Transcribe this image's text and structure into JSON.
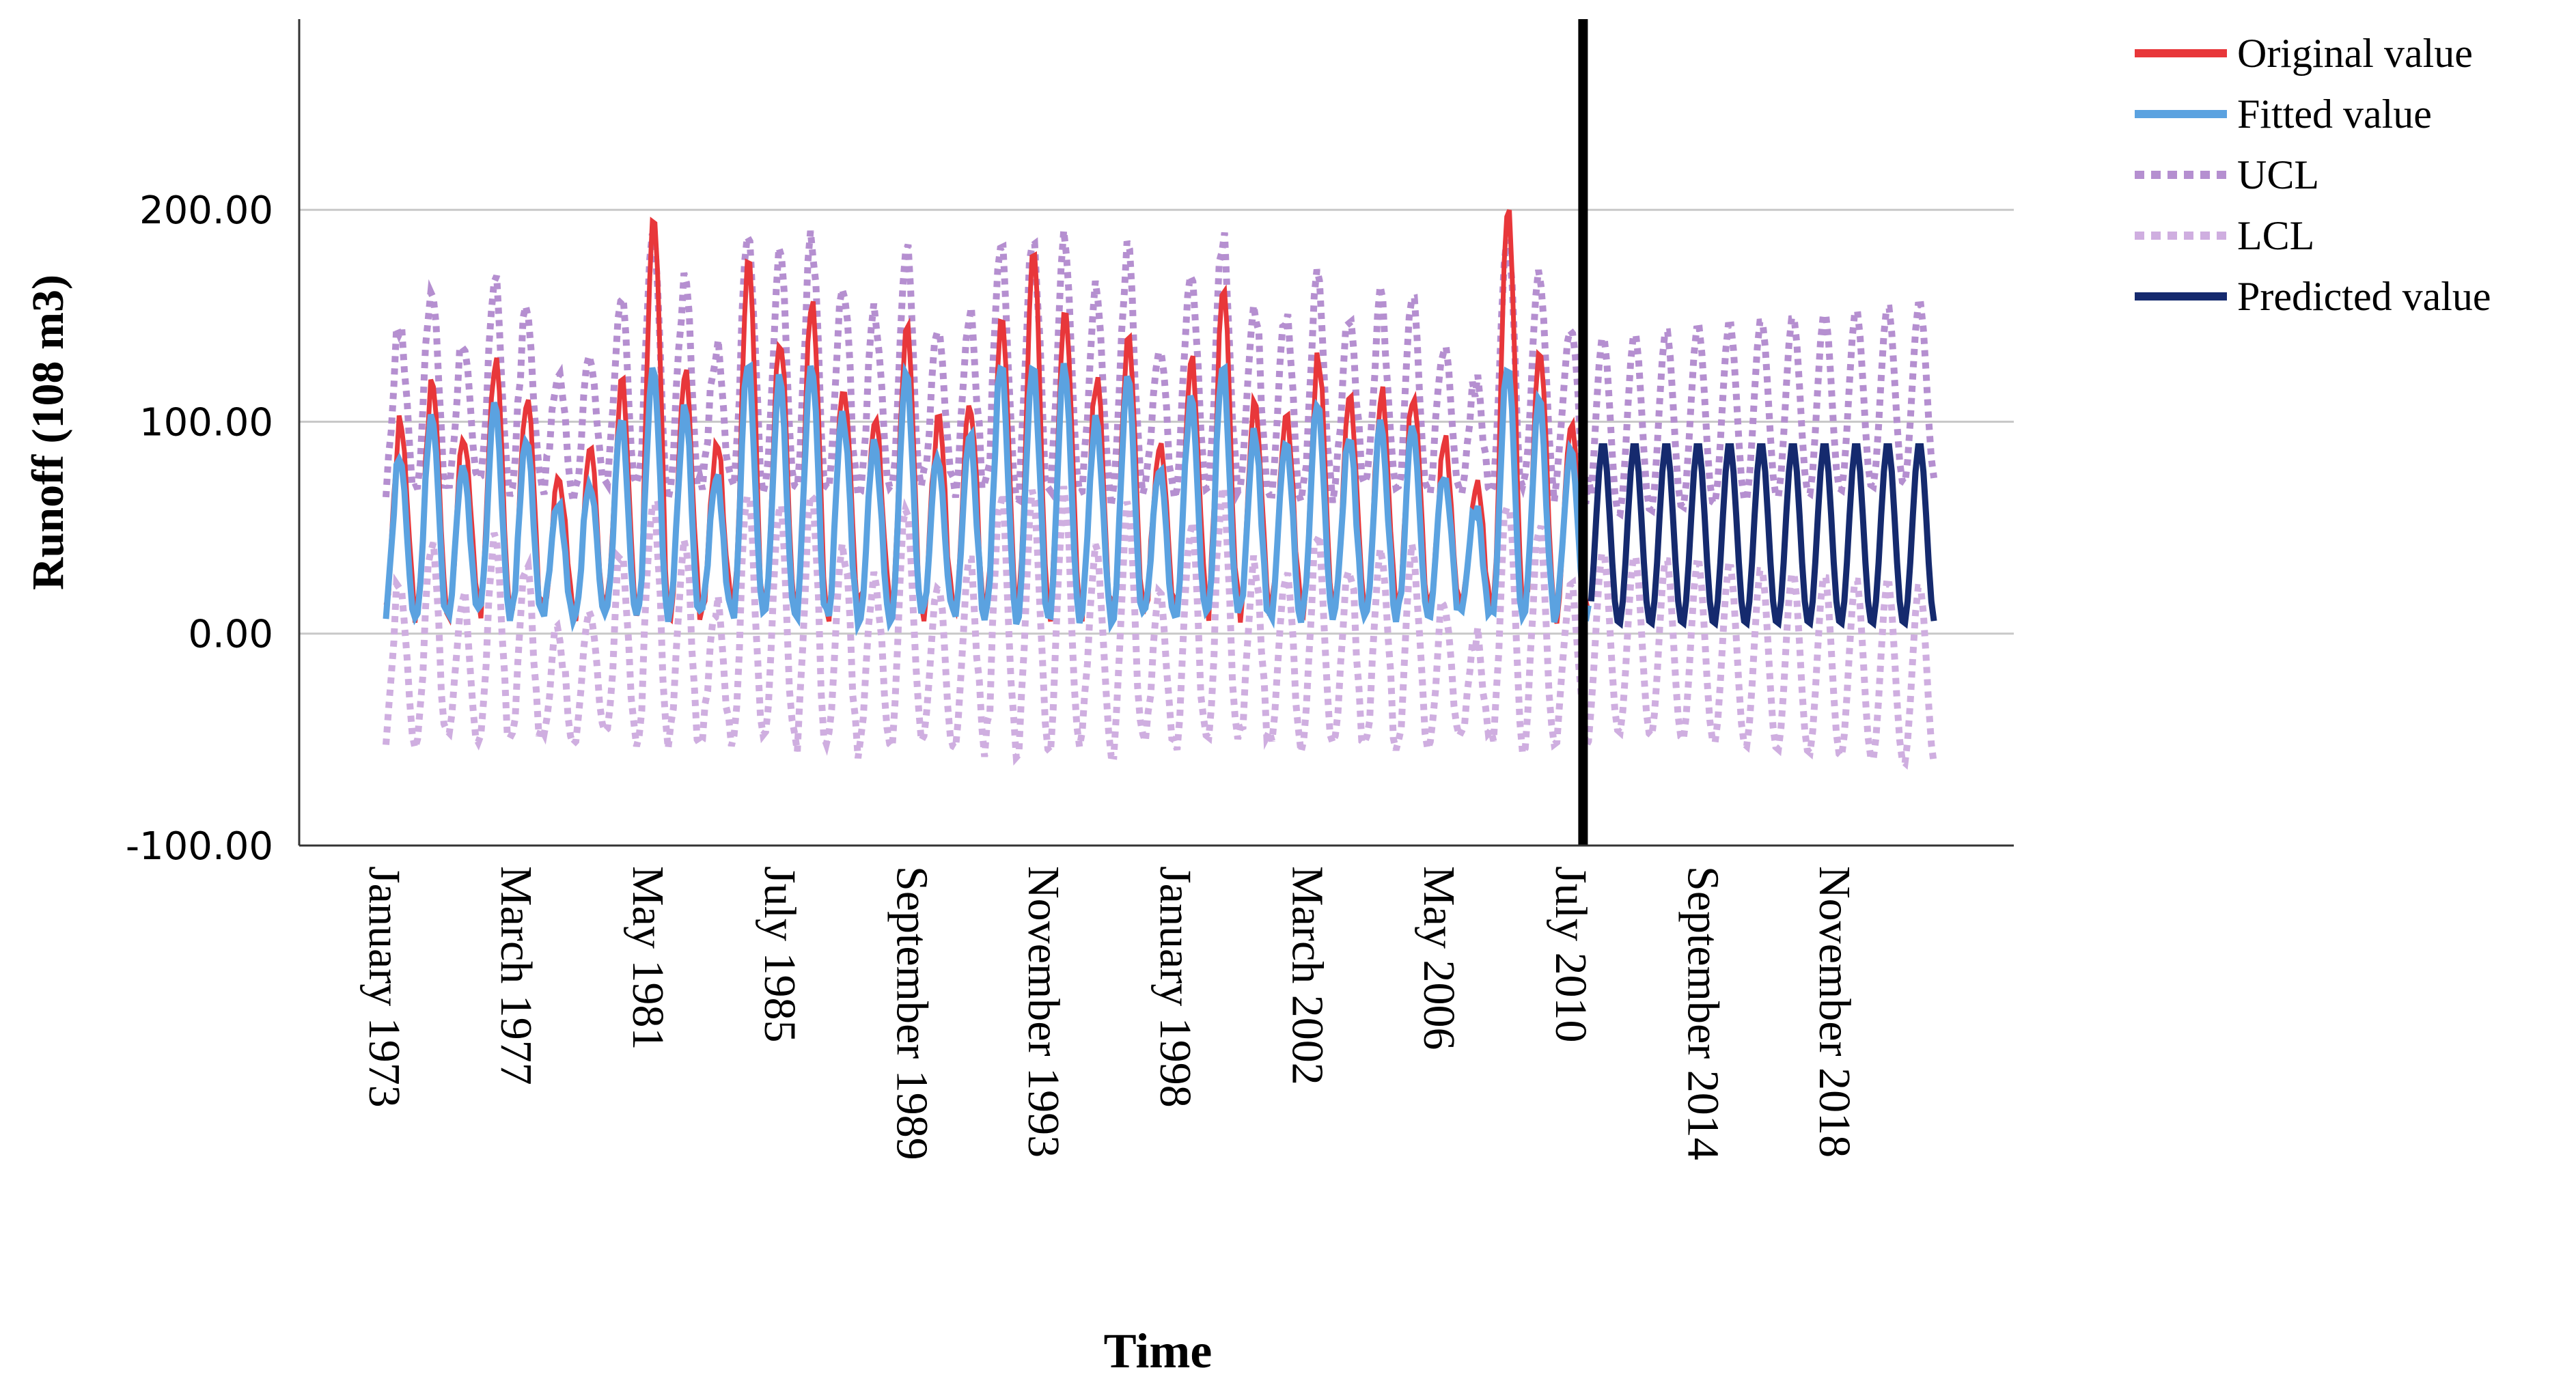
{
  "chart_data": {
    "type": "line",
    "title": "",
    "xlabel": "Time",
    "ylabel": "Runoff (108 m3)",
    "ylim": [
      -100,
      290
    ],
    "yticks": [
      -100,
      0,
      100,
      200
    ],
    "ytick_labels": [
      "-100.00",
      "0.00",
      "100.00",
      "200.00"
    ],
    "gridlines_y": [
      0,
      100,
      200
    ],
    "x_start": "January 1973",
    "x_end": "December 2021",
    "xticks": [
      {
        "label": "January 1973",
        "year": 1973.0
      },
      {
        "label": "March 1977",
        "year": 1977.17
      },
      {
        "label": "May 1981",
        "year": 1981.33
      },
      {
        "label": "July 1985",
        "year": 1985.5
      },
      {
        "label": "September 1989",
        "year": 1989.67
      },
      {
        "label": "November 1993",
        "year": 1993.83
      },
      {
        "label": "January 1998",
        "year": 1998.0
      },
      {
        "label": "March 2002",
        "year": 2002.17
      },
      {
        "label": "May 2006",
        "year": 2006.33
      },
      {
        "label": "July 2010",
        "year": 2010.5
      },
      {
        "label": "September 2014",
        "year": 2014.67
      },
      {
        "label": "November 2018",
        "year": 2018.83
      }
    ],
    "forecast_start_year": 2011.0,
    "annual_peaks_original": [
      {
        "year": 1973,
        "value": 100
      },
      {
        "year": 1974,
        "value": 120
      },
      {
        "year": 1975,
        "value": 95
      },
      {
        "year": 1976,
        "value": 130
      },
      {
        "year": 1977,
        "value": 110
      },
      {
        "year": 1978,
        "value": 75
      },
      {
        "year": 1979,
        "value": 85
      },
      {
        "year": 1980,
        "value": 120
      },
      {
        "year": 1981,
        "value": 200
      },
      {
        "year": 1982,
        "value": 125
      },
      {
        "year": 1983,
        "value": 90
      },
      {
        "year": 1984,
        "value": 175
      },
      {
        "year": 1985,
        "value": 140
      },
      {
        "year": 1986,
        "value": 157
      },
      {
        "year": 1987,
        "value": 120
      },
      {
        "year": 1988,
        "value": 105
      },
      {
        "year": 1989,
        "value": 145
      },
      {
        "year": 1990,
        "value": 100
      },
      {
        "year": 1991,
        "value": 110
      },
      {
        "year": 1992,
        "value": 150
      },
      {
        "year": 1993,
        "value": 182
      },
      {
        "year": 1994,
        "value": 153
      },
      {
        "year": 1995,
        "value": 120
      },
      {
        "year": 1996,
        "value": 140
      },
      {
        "year": 1997,
        "value": 90
      },
      {
        "year": 1998,
        "value": 130
      },
      {
        "year": 1999,
        "value": 163
      },
      {
        "year": 2000,
        "value": 110
      },
      {
        "year": 2001,
        "value": 105
      },
      {
        "year": 2002,
        "value": 130
      },
      {
        "year": 2003,
        "value": 110
      },
      {
        "year": 2004,
        "value": 115
      },
      {
        "year": 2005,
        "value": 113
      },
      {
        "year": 2006,
        "value": 90
      },
      {
        "year": 2007,
        "value": 70
      },
      {
        "year": 2008,
        "value": 205
      },
      {
        "year": 2009,
        "value": 130
      },
      {
        "year": 2010,
        "value": 100
      }
    ],
    "predicted_peak": 90,
    "predicted_trough": 5,
    "series": [
      {
        "name": "Original value",
        "color": "#e8373a",
        "style": "solid"
      },
      {
        "name": "Fitted value",
        "color": "#5ba2e0",
        "style": "solid"
      },
      {
        "name": "UCL",
        "color": "#b58fd0",
        "style": "dotted"
      },
      {
        "name": "LCL",
        "color": "#cfaee0",
        "style": "dotted"
      },
      {
        "name": "Predicted value",
        "color": "#152a6e",
        "style": "solid"
      }
    ],
    "vertical_marker": {
      "year": 2011.0,
      "color": "#000000"
    },
    "legend_position": "top-right"
  }
}
